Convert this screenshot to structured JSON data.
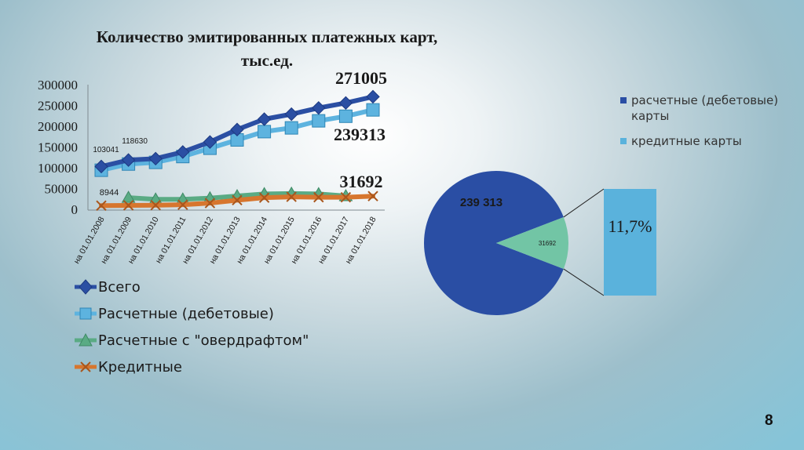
{
  "slide": {
    "page_number": "8"
  },
  "chart_data": [
    {
      "type": "line",
      "title": "Количество эмитированных платежных карт, тыс.ед.",
      "categories": [
        "на 01.01.2008",
        "на 01.01.2009",
        "на 01.01.2010",
        "на 01.01.2011",
        "на 01.01.2012",
        "на 01.01.2013",
        "на 01.01.2014",
        "на 01.01.2015",
        "на 01.01.2016",
        "на 01.01.2017",
        "на 01.01.2018"
      ],
      "y_ticks": [
        "300000",
        "250000",
        "200000",
        "150000",
        "100000",
        "50000",
        "0"
      ],
      "ylim": [
        0,
        300000
      ],
      "grid": false,
      "legend_position": "bottom",
      "series": [
        {
          "name": "Всего",
          "color": "#2b4fa3",
          "marker": "diamond",
          "values": [
            103041,
            118630,
            122000,
            138000,
            162000,
            192000,
            217000,
            229000,
            244000,
            256000,
            271005
          ]
        },
        {
          "name": "Расчетные (дебетовые)",
          "color": "#5db3df",
          "marker": "square",
          "values": [
            94097,
            109000,
            113000,
            127000,
            147000,
            167000,
            187000,
            196000,
            213000,
            224000,
            239313
          ]
        },
        {
          "name": "Расчетные с \"овердрафтом\"",
          "color": "#5aab84",
          "marker": "triangle",
          "values": [
            null,
            28000,
            24000,
            24000,
            27000,
            32000,
            37000,
            38000,
            37000,
            32000,
            null
          ]
        },
        {
          "name": "Кредитные",
          "color": "#d7762e",
          "marker": "x",
          "values": [
            8944,
            9500,
            10000,
            11000,
            15000,
            22000,
            28000,
            30000,
            29000,
            29000,
            31692
          ]
        }
      ],
      "data_labels": [
        "103041",
        "118630",
        "8944"
      ],
      "annotations": [
        "271005",
        "239313",
        "31692"
      ]
    },
    {
      "type": "pie",
      "slices": [
        {
          "name": "расчетные (дебетовые) карты",
          "value": 239313,
          "label": "239 313",
          "color": "#2a4ea4"
        },
        {
          "name": "кредитные карты",
          "value": 31692,
          "label": "31692",
          "color": "#72c5a5"
        }
      ],
      "callout": {
        "label": "11,7%",
        "color": "#5ab2dc"
      },
      "legend_position": "right"
    }
  ]
}
